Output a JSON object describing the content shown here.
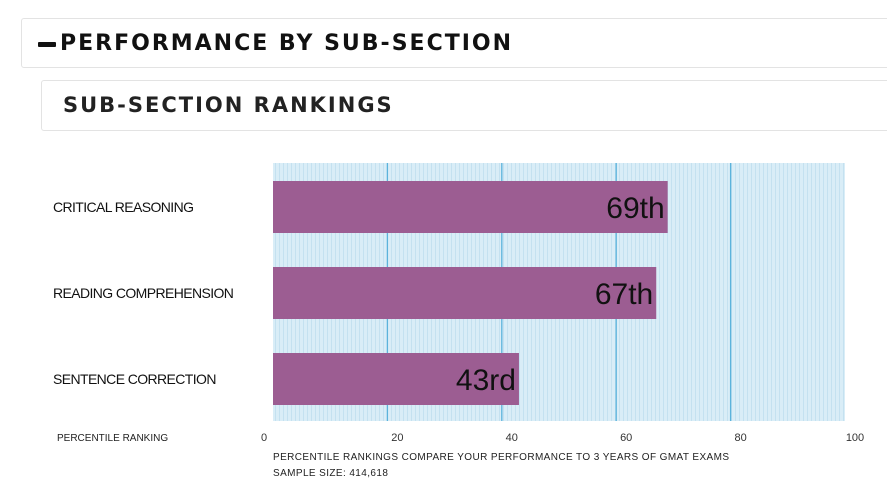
{
  "section": {
    "title": "PERFORMANCE BY SUB-SECTION"
  },
  "subsection": {
    "title": "SUB-SECTION RANKINGS"
  },
  "chart_data": {
    "type": "bar",
    "orientation": "horizontal",
    "categories": [
      "CRITICAL REASONING",
      "READING COMPREHENSION",
      "SENTENCE CORRECTION"
    ],
    "values": [
      69,
      67,
      43
    ],
    "data_labels": [
      "69th",
      "67th",
      "43rd"
    ],
    "xlabel": "PERCENTILE RANKING",
    "xlim": [
      0,
      100
    ],
    "xticks": [
      0,
      20,
      40,
      60,
      80,
      100
    ],
    "grid": true,
    "colors": {
      "bar": "#9c5d92",
      "plot_background": "#d9edf7",
      "gridline": "#5bb3dc"
    }
  },
  "footnotes": {
    "line1": "PERCENTILE RANKINGS COMPARE YOUR PERFORMANCE TO 3 YEARS OF GMAT EXAMS",
    "line2": "SAMPLE SIZE: 414,618"
  }
}
